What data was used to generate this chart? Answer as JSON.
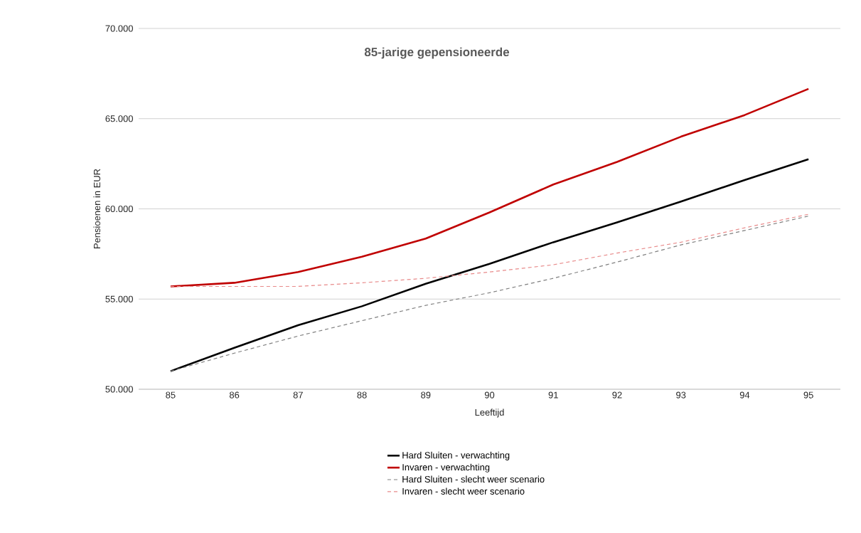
{
  "chart_data": {
    "type": "line",
    "title": "85-jarige gepensioneerde",
    "xlabel": "Leeftijd",
    "ylabel": "Pensioenen in EUR",
    "categories": [
      "85",
      "86",
      "87",
      "88",
      "89",
      "90",
      "91",
      "92",
      "93",
      "94",
      "95"
    ],
    "ylim": [
      50000,
      70000
    ],
    "yticks": [
      {
        "value": 50000,
        "label": "50.000"
      },
      {
        "value": 55000,
        "label": "55.000"
      },
      {
        "value": 60000,
        "label": "60.000"
      },
      {
        "value": 65000,
        "label": "65.000"
      },
      {
        "value": 70000,
        "label": "70.000"
      }
    ],
    "grid": "y",
    "legend": "bottom",
    "marker": "none",
    "series": [
      {
        "name": "Hard Sluiten - verwachting",
        "color": "#000000",
        "line_style": "solid",
        "values": [
          51000,
          52300,
          53550,
          54600,
          55850,
          56950,
          58150,
          59250,
          60400,
          61600,
          62750
        ]
      },
      {
        "name": "Invaren - verwachting",
        "color": "#c00000",
        "line_style": "solid",
        "values": [
          55700,
          55900,
          56500,
          57350,
          58350,
          59800,
          61350,
          62600,
          64000,
          65200,
          66650
        ]
      },
      {
        "name": "Hard Sluiten - slecht weer scenario",
        "color": "#808080",
        "line_style": "dashed",
        "values": [
          51000,
          52000,
          52950,
          53800,
          54650,
          55350,
          56150,
          57050,
          58000,
          58800,
          59600
        ]
      },
      {
        "name": "Invaren - slecht weer scenario",
        "color": "#e88a8a",
        "line_style": "dashed",
        "values": [
          55700,
          55700,
          55700,
          55900,
          56150,
          56500,
          56900,
          57550,
          58150,
          58950,
          59700
        ]
      }
    ]
  }
}
